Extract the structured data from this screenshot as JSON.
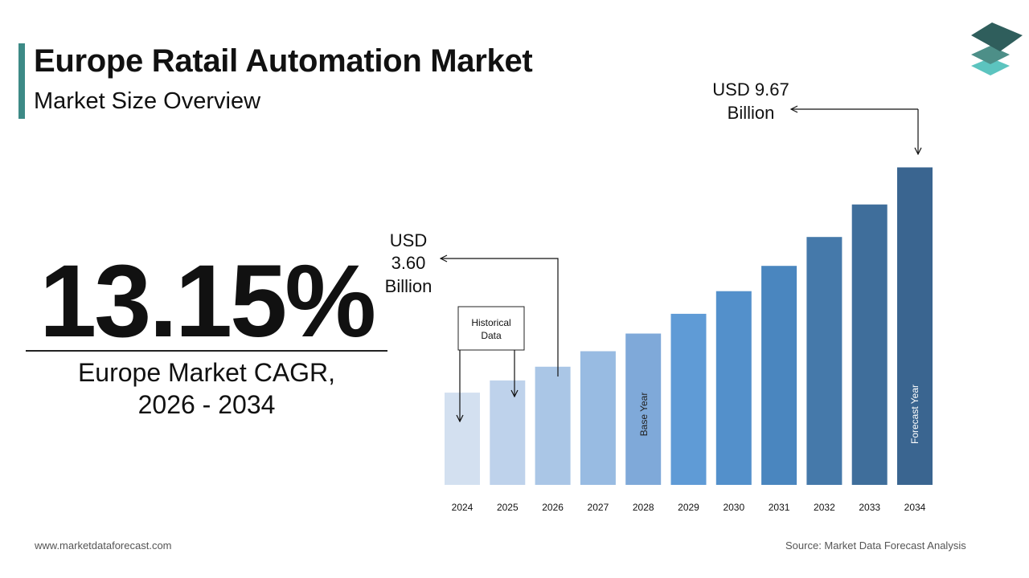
{
  "header": {
    "title": "Europe Ratail Automation Market",
    "subtitle": "Market Size Overview"
  },
  "cagr": {
    "value": "13.15%",
    "label_line1": "Europe Market CAGR,",
    "label_line2": "2026 - 2034"
  },
  "annotations": {
    "start_value_lines": [
      "USD",
      "3.60",
      "Billion"
    ],
    "end_value_lines": [
      "USD 9.67",
      "Billion"
    ],
    "historical_lines": [
      "Historical",
      "Data"
    ],
    "base_year_label": "Base Year",
    "forecast_year_label": "Forecast Year"
  },
  "chart_data": {
    "type": "bar",
    "categories": [
      "2024",
      "2025",
      "2026",
      "2027",
      "2028",
      "2029",
      "2030",
      "2031",
      "2032",
      "2033",
      "2034"
    ],
    "values": [
      2.81,
      3.18,
      3.6,
      4.07,
      4.61,
      5.21,
      5.9,
      6.67,
      7.55,
      8.54,
      9.67
    ],
    "title": "",
    "xlabel": "",
    "ylabel": "",
    "ylim": [
      0,
      10
    ],
    "grid": false,
    "colors": [
      "#d3e0f0",
      "#bed2eb",
      "#aac6e6",
      "#98bbe2",
      "#7fa9d9",
      "#5f9bd6",
      "#5390cb",
      "#4a86bf",
      "#4579aa",
      "#3f6e9b",
      "#3a6590"
    ]
  },
  "footer": {
    "website": "www.marketdataforecast.com",
    "source": "Source: Market Data Forecast Analysis"
  },
  "logo": {
    "icon": "stacked-layers-icon",
    "colors": [
      "#2f5e5c",
      "#4d8f88",
      "#5cc4bf"
    ]
  }
}
